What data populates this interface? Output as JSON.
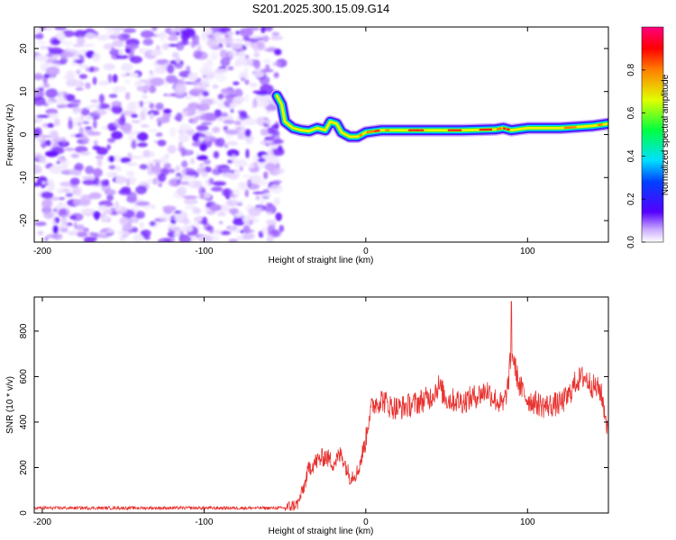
{
  "chart_data": [
    {
      "type": "heatmap",
      "title": "S201.2025.300.15.09.G14",
      "xlabel": "Height of straight line (km)",
      "ylabel": "Frequency (Hz)",
      "xlim": [
        -205,
        150
      ],
      "ylim": [
        -25,
        25
      ],
      "xticks": [
        -200,
        -100,
        0,
        100
      ],
      "yticks": [
        20,
        10,
        0,
        -10,
        -20
      ],
      "noise_region_x": [
        -205,
        -52
      ],
      "ridge": {
        "x": [
          -55,
          -52,
          -50,
          -45,
          -40,
          -35,
          -30,
          -25,
          -22,
          -18,
          -15,
          -10,
          -5,
          0,
          10,
          20,
          40,
          60,
          80,
          85,
          90,
          100,
          120,
          140,
          150
        ],
        "freq": [
          9,
          7,
          3,
          1.5,
          1,
          0.8,
          1.5,
          1,
          3,
          2.5,
          0.5,
          -0.5,
          -0.5,
          0.5,
          1,
          1,
          1,
          1,
          1.2,
          1.5,
          1,
          1.5,
          1.5,
          2,
          2.5
        ]
      },
      "colorbar": {
        "label": "Normalized spectral amplitude",
        "range": [
          0,
          1
        ],
        "ticks": [
          "0.0",
          "0.2",
          "0.4",
          "0.6",
          "0.8"
        ]
      }
    },
    {
      "type": "line",
      "title": "",
      "xlabel": "Height of straight line (km)",
      "ylabel": "SNR (10 * v/v)",
      "xlim": [
        -205,
        150
      ],
      "ylim": [
        0,
        950
      ],
      "xticks": [
        -200,
        -100,
        0,
        100
      ],
      "yticks": [
        0,
        200,
        400,
        600,
        800
      ],
      "color": "#e8322f",
      "envelope": {
        "x": [
          -205,
          -50,
          -42,
          -38,
          -35,
          -30,
          -25,
          -20,
          -15,
          -10,
          -5,
          0,
          2,
          5,
          10,
          15,
          20,
          30,
          40,
          45,
          50,
          60,
          70,
          75,
          80,
          85,
          88,
          90,
          92,
          95,
          100,
          110,
          120,
          125,
          130,
          135,
          140,
          145,
          148,
          150
        ],
        "snr": [
          22,
          22,
          40,
          120,
          200,
          230,
          250,
          220,
          260,
          160,
          180,
          320,
          430,
          480,
          500,
          470,
          460,
          480,
          510,
          560,
          500,
          490,
          520,
          540,
          500,
          470,
          560,
          720,
          650,
          560,
          500,
          470,
          480,
          510,
          580,
          600,
          560,
          540,
          440,
          330
        ]
      },
      "noise_amplitude": 110,
      "peak": {
        "x": 90,
        "snr": 930
      }
    }
  ]
}
